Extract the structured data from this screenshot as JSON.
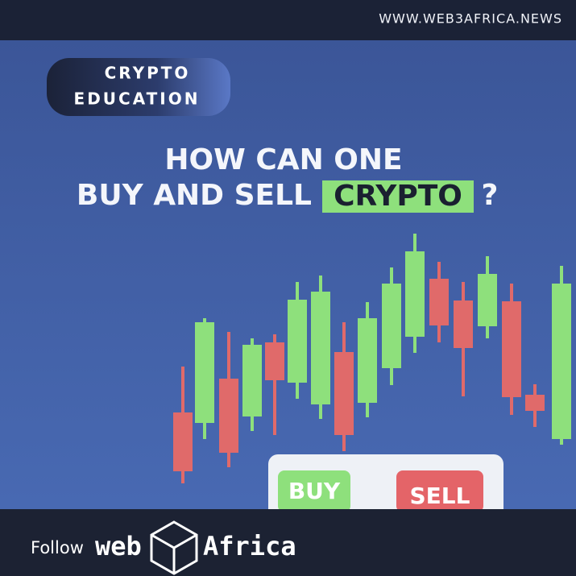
{
  "header": {
    "url": "WWW.WEB3AFRICA.NEWS"
  },
  "badge": {
    "lines": [
      "CRYPTO",
      "EDUCATION"
    ]
  },
  "headline": {
    "line1": "HOW CAN ONE",
    "line2_prefix": "BUY AND SELL",
    "highlight": "CRYPTO",
    "suffix": "?"
  },
  "buttons": {
    "buy": "BUY",
    "sell": "SELL"
  },
  "footer": {
    "follow": "Follow",
    "logo_left": "web",
    "logo_right": "Africa"
  }
}
